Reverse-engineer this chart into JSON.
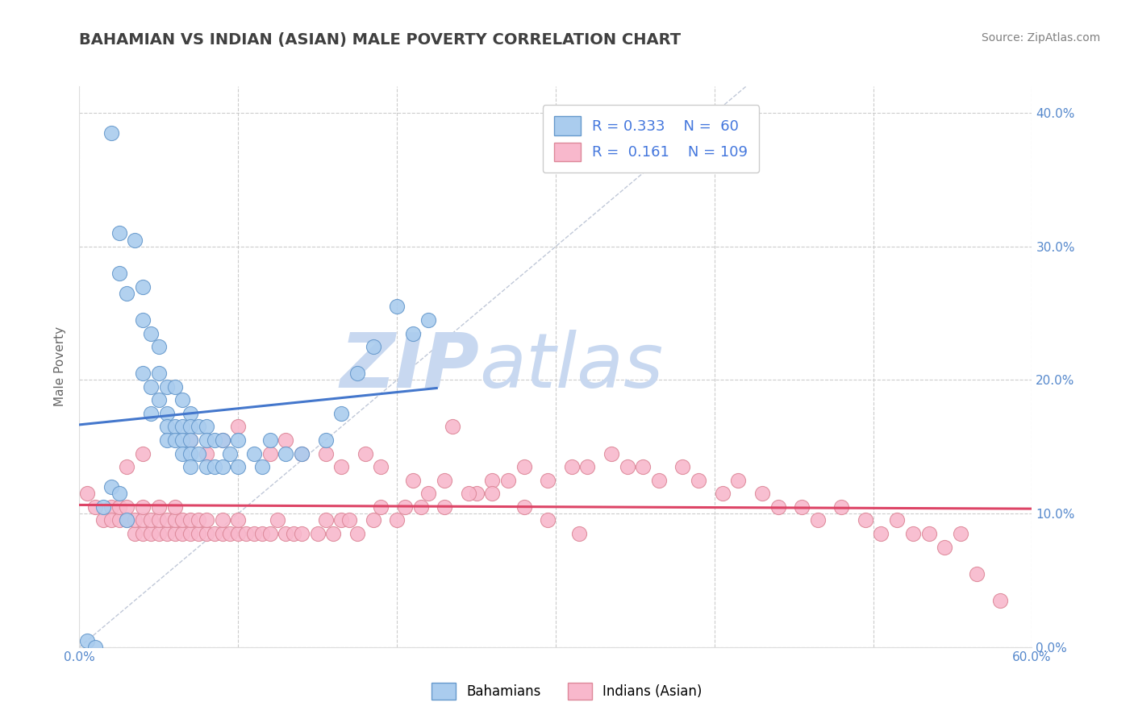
{
  "title": "BAHAMIAN VS INDIAN (ASIAN) MALE POVERTY CORRELATION CHART",
  "source": "Source: ZipAtlas.com",
  "ylabel": "Male Poverty",
  "xlim": [
    0.0,
    0.6
  ],
  "ylim": [
    0.0,
    0.42
  ],
  "xticks": [
    0.0,
    0.1,
    0.2,
    0.3,
    0.4,
    0.5,
    0.6
  ],
  "xticklabels": [
    "0.0%",
    "",
    "",
    "",
    "",
    "",
    "60.0%"
  ],
  "yticks": [
    0.0,
    0.1,
    0.2,
    0.3,
    0.4
  ],
  "yticklabels_right": [
    "0.0%",
    "10.0%",
    "20.0%",
    "30.0%",
    "40.0%"
  ],
  "background_color": "#ffffff",
  "grid_color": "#cccccc",
  "title_color": "#404040",
  "source_color": "#808080",
  "tick_label_color": "#5588cc",
  "watermark_zip": "ZIP",
  "watermark_atlas": "atlas",
  "watermark_color": "#c8d8f0",
  "legend_R1": "0.333",
  "legend_N1": "60",
  "legend_R2": "0.161",
  "legend_N2": "109",
  "series1_color": "#aaccee",
  "series1_edge": "#6699cc",
  "series2_color": "#f8b8cc",
  "series2_edge": "#dd8899",
  "trend1_color": "#4477cc",
  "trend2_color": "#dd4466",
  "refline_color": "#c0c8d8",
  "series1_x": [
    0.005,
    0.02,
    0.025,
    0.025,
    0.03,
    0.035,
    0.04,
    0.04,
    0.04,
    0.045,
    0.045,
    0.045,
    0.05,
    0.05,
    0.05,
    0.055,
    0.055,
    0.055,
    0.055,
    0.06,
    0.06,
    0.06,
    0.065,
    0.065,
    0.065,
    0.065,
    0.07,
    0.07,
    0.07,
    0.07,
    0.07,
    0.075,
    0.075,
    0.08,
    0.08,
    0.08,
    0.085,
    0.085,
    0.09,
    0.09,
    0.095,
    0.1,
    0.1,
    0.11,
    0.115,
    0.12,
    0.13,
    0.14,
    0.155,
    0.165,
    0.175,
    0.185,
    0.2,
    0.21,
    0.22,
    0.01,
    0.015,
    0.02,
    0.025,
    0.03
  ],
  "series1_y": [
    0.005,
    0.385,
    0.31,
    0.28,
    0.265,
    0.305,
    0.27,
    0.245,
    0.205,
    0.235,
    0.195,
    0.175,
    0.225,
    0.205,
    0.185,
    0.195,
    0.175,
    0.165,
    0.155,
    0.195,
    0.165,
    0.155,
    0.185,
    0.165,
    0.155,
    0.145,
    0.175,
    0.165,
    0.155,
    0.145,
    0.135,
    0.165,
    0.145,
    0.165,
    0.155,
    0.135,
    0.155,
    0.135,
    0.155,
    0.135,
    0.145,
    0.155,
    0.135,
    0.145,
    0.135,
    0.155,
    0.145,
    0.145,
    0.155,
    0.175,
    0.205,
    0.225,
    0.255,
    0.235,
    0.245,
    0.0,
    0.105,
    0.12,
    0.115,
    0.095
  ],
  "series2_x": [
    0.005,
    0.01,
    0.015,
    0.02,
    0.02,
    0.025,
    0.025,
    0.03,
    0.03,
    0.035,
    0.035,
    0.04,
    0.04,
    0.04,
    0.045,
    0.045,
    0.05,
    0.05,
    0.05,
    0.055,
    0.055,
    0.06,
    0.06,
    0.06,
    0.065,
    0.065,
    0.07,
    0.07,
    0.075,
    0.075,
    0.08,
    0.08,
    0.085,
    0.09,
    0.09,
    0.095,
    0.1,
    0.1,
    0.105,
    0.11,
    0.115,
    0.12,
    0.125,
    0.13,
    0.135,
    0.14,
    0.15,
    0.155,
    0.16,
    0.165,
    0.17,
    0.175,
    0.185,
    0.19,
    0.2,
    0.205,
    0.215,
    0.22,
    0.23,
    0.235,
    0.25,
    0.26,
    0.27,
    0.28,
    0.295,
    0.31,
    0.32,
    0.335,
    0.345,
    0.355,
    0.365,
    0.38,
    0.39,
    0.405,
    0.415,
    0.43,
    0.44,
    0.455,
    0.465,
    0.48,
    0.495,
    0.505,
    0.515,
    0.525,
    0.535,
    0.545,
    0.555,
    0.565,
    0.58,
    0.07,
    0.08,
    0.09,
    0.1,
    0.12,
    0.13,
    0.14,
    0.155,
    0.165,
    0.18,
    0.19,
    0.21,
    0.23,
    0.245,
    0.26,
    0.28,
    0.295,
    0.315,
    0.03,
    0.04
  ],
  "series2_y": [
    0.115,
    0.105,
    0.095,
    0.105,
    0.095,
    0.095,
    0.105,
    0.095,
    0.105,
    0.085,
    0.095,
    0.085,
    0.095,
    0.105,
    0.085,
    0.095,
    0.085,
    0.095,
    0.105,
    0.085,
    0.095,
    0.085,
    0.095,
    0.105,
    0.085,
    0.095,
    0.085,
    0.095,
    0.085,
    0.095,
    0.085,
    0.095,
    0.085,
    0.085,
    0.095,
    0.085,
    0.085,
    0.095,
    0.085,
    0.085,
    0.085,
    0.085,
    0.095,
    0.085,
    0.085,
    0.085,
    0.085,
    0.095,
    0.085,
    0.095,
    0.095,
    0.085,
    0.095,
    0.105,
    0.095,
    0.105,
    0.105,
    0.115,
    0.105,
    0.165,
    0.115,
    0.125,
    0.125,
    0.135,
    0.125,
    0.135,
    0.135,
    0.145,
    0.135,
    0.135,
    0.125,
    0.135,
    0.125,
    0.115,
    0.125,
    0.115,
    0.105,
    0.105,
    0.095,
    0.105,
    0.095,
    0.085,
    0.095,
    0.085,
    0.085,
    0.075,
    0.085,
    0.055,
    0.035,
    0.155,
    0.145,
    0.155,
    0.165,
    0.145,
    0.155,
    0.145,
    0.145,
    0.135,
    0.145,
    0.135,
    0.125,
    0.125,
    0.115,
    0.115,
    0.105,
    0.095,
    0.085,
    0.135,
    0.145
  ]
}
